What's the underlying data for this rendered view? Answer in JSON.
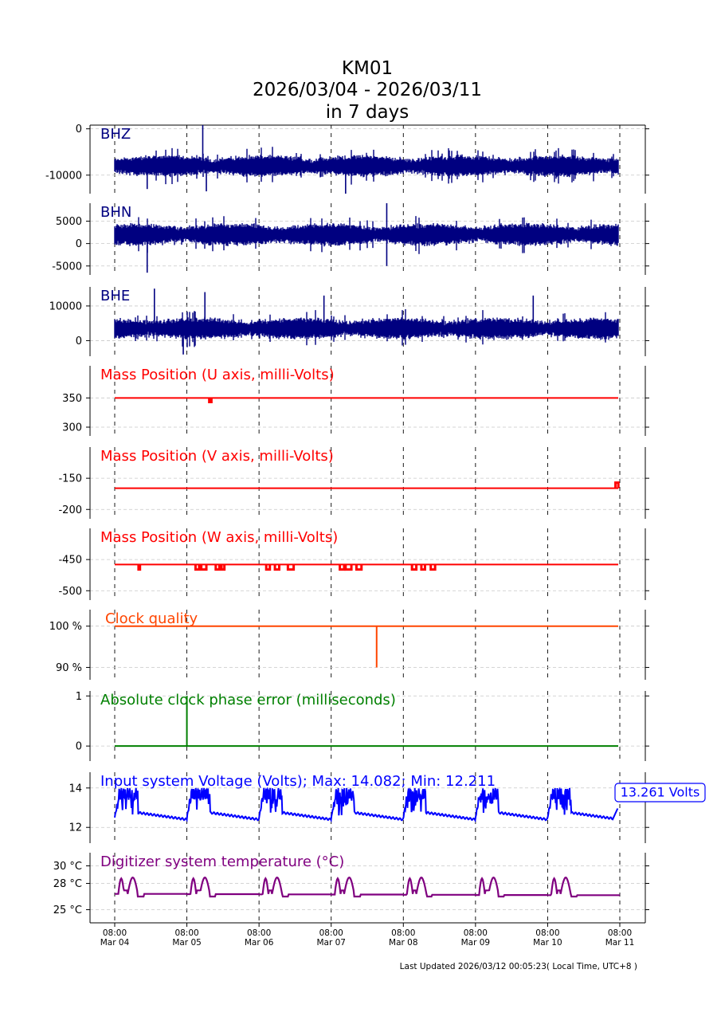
{
  "page": {
    "title_lines": [
      "KM01",
      "2026/03/04 - 2026/03/11",
      "in 7 days"
    ],
    "footer": "Last Updated 2026/03/12 00:05:23( Local Time, UTC+8 )"
  },
  "chart_data": {
    "type": "line",
    "x": {
      "start": "2026-03-04 08:00",
      "end": "2026-03-11 08:00",
      "tick_labels": [
        [
          "08:00",
          "Mar 04"
        ],
        [
          "08:00",
          "Mar 05"
        ],
        [
          "08:00",
          "Mar 06"
        ],
        [
          "08:00",
          "Mar 07"
        ],
        [
          "08:00",
          "Mar 08"
        ],
        [
          "08:00",
          "Mar 09"
        ],
        [
          "08:00",
          "Mar 10"
        ],
        [
          "08:00",
          "Mar 11"
        ]
      ],
      "grid": true
    },
    "panels": [
      {
        "id": "bhz",
        "label": "BHZ",
        "label_color": "#000080",
        "line_color": "#000080",
        "kind": "noise",
        "ylim": [
          -14000,
          800
        ],
        "yticks": [
          {
            "value": 0,
            "label": "0"
          },
          {
            "value": -10000,
            "label": "-10000"
          }
        ],
        "base": -8000,
        "spikes": [
          [
            1.22,
            800
          ],
          [
            1.27,
            -13500
          ],
          [
            3.2,
            -14000
          ],
          [
            0.45,
            -13000
          ]
        ]
      },
      {
        "id": "bhn",
        "label": "BHN",
        "label_color": "#000080",
        "line_color": "#000080",
        "kind": "noise",
        "ylim": [
          -7000,
          9000
        ],
        "yticks": [
          {
            "value": 5000,
            "label": "5000"
          },
          {
            "value": 0,
            "label": "0"
          },
          {
            "value": -5000,
            "label": "-5000"
          }
        ],
        "base": 2000,
        "spikes": [
          [
            3.77,
            9000
          ],
          [
            3.77,
            -5000
          ],
          [
            0.45,
            -6500
          ]
        ]
      },
      {
        "id": "bhe",
        "label": "BHE",
        "label_color": "#000080",
        "line_color": "#000080",
        "kind": "noise",
        "ylim": [
          -4500,
          15500
        ],
        "yticks": [
          {
            "value": 10000,
            "label": "10000"
          },
          {
            "value": 0,
            "label": "0"
          }
        ],
        "base": 3500,
        "spikes": [
          [
            0.55,
            15000
          ],
          [
            1.25,
            14000
          ],
          [
            2.9,
            13000
          ],
          [
            5.8,
            13000
          ],
          [
            0.95,
            -4000
          ]
        ]
      },
      {
        "id": "mass_u",
        "label": "Mass Position (U axis, milli-Volts)",
        "label_color": "#ff0000",
        "line_color": "#ff0000",
        "kind": "step",
        "ylim": [
          285,
          405
        ],
        "yticks": [
          {
            "value": 350,
            "label": "350"
          },
          {
            "value": 300,
            "label": "300"
          }
        ],
        "base": 350,
        "events": [
          [
            1.31,
            1.34,
            343
          ]
        ]
      },
      {
        "id": "mass_v",
        "label": "Mass Position (V axis, milli-Volts)",
        "label_color": "#ff0000",
        "line_color": "#ff0000",
        "kind": "step",
        "ylim": [
          -215,
          -100
        ],
        "yticks": [
          {
            "value": -150,
            "label": "-150"
          },
          {
            "value": -200,
            "label": "-200"
          }
        ],
        "base": -166,
        "events": [
          [
            6.94,
            6.98,
            -157
          ]
        ]
      },
      {
        "id": "mass_w",
        "label": "Mass Position (W axis, milli-Volts)",
        "label_color": "#ff0000",
        "line_color": "#ff0000",
        "kind": "step",
        "ylim": [
          -515,
          -400
        ],
        "yticks": [
          {
            "value": -450,
            "label": "-450"
          },
          {
            "value": -500,
            "label": "-500"
          }
        ],
        "base": -458,
        "events": [
          [
            0.33,
            0.35,
            -466
          ],
          [
            1.12,
            1.17,
            -466
          ],
          [
            1.2,
            1.27,
            -466
          ],
          [
            1.4,
            1.45,
            -466
          ],
          [
            1.48,
            1.52,
            -466
          ],
          [
            2.1,
            2.15,
            -466
          ],
          [
            2.22,
            2.28,
            -466
          ],
          [
            2.4,
            2.48,
            -466
          ],
          [
            3.12,
            3.18,
            -466
          ],
          [
            3.2,
            3.28,
            -466
          ],
          [
            3.35,
            3.42,
            -466
          ],
          [
            4.12,
            4.18,
            -466
          ],
          [
            4.25,
            4.3,
            -466
          ],
          [
            4.38,
            4.44,
            -466
          ]
        ]
      },
      {
        "id": "clock_quality",
        "label": "Clock quality",
        "label_color": "#ff4500",
        "line_color": "#ff4500",
        "kind": "flat_spike",
        "ylim": [
          87,
          104
        ],
        "yticks": [
          {
            "value": 100,
            "label": "100 %"
          },
          {
            "value": 90,
            "label": "90 %"
          }
        ],
        "base": 100,
        "spikes": [
          [
            3.63,
            90
          ]
        ]
      },
      {
        "id": "clock_phase",
        "label": "Absolute clock phase error (milliseconds)",
        "label_color": "#008000",
        "line_color": "#008000",
        "kind": "flat_spike",
        "ylim": [
          -0.3,
          1.1
        ],
        "yticks": [
          {
            "value": 1,
            "label": "1"
          },
          {
            "value": 0,
            "label": "0"
          }
        ],
        "base": 0,
        "spikes": [
          [
            1.0,
            1
          ]
        ]
      },
      {
        "id": "voltage",
        "label": "Input system Voltage (Volts);    Max: 14.082; Min: 12.211",
        "label_color": "#0000ff",
        "line_color": "#0000ff",
        "kind": "diurnal",
        "ylim": [
          11.2,
          14.8
        ],
        "yticks": [
          {
            "value": 14,
            "label": "14"
          },
          {
            "value": 12,
            "label": "12"
          }
        ],
        "min": 12.211,
        "max": 14.082,
        "last_value_label": "13.261 Volts"
      },
      {
        "id": "temperature",
        "label": "Digitizer system temperature (°C)",
        "label_color": "#800080",
        "line_color": "#800080",
        "kind": "diurnal_temp",
        "ylim": [
          23.5,
          31.5
        ],
        "yticks": [
          {
            "value": 30,
            "label": "30 °C"
          },
          {
            "value": 28,
            "label": "28 °C"
          },
          {
            "value": 25,
            "label": "25 °C"
          }
        ],
        "base": 26.8,
        "peak": 29.0
      }
    ]
  }
}
